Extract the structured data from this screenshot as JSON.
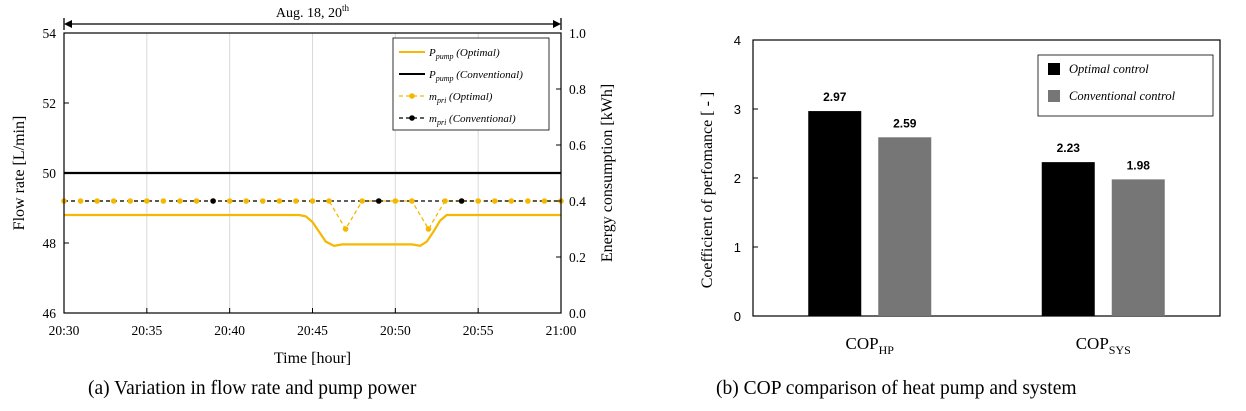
{
  "chart_data": [
    {
      "type": "line",
      "caption": "(a)  Variation  in  flow rate  and  pump  power",
      "date_label": "Aug. 18, 20",
      "date_label_sup": "th",
      "xlabel": "Time [hour]",
      "ylabel": "Flow rate [L/min]",
      "y2label": "Energy consumption [kWh]",
      "x_ticks": [
        "20:30",
        "20:35",
        "20:40",
        "20:45",
        "20:50",
        "20:55",
        "21:00"
      ],
      "x_range_min": [
        0,
        30
      ],
      "ylim": [
        46,
        54
      ],
      "y_ticks": [
        46,
        48,
        50,
        52,
        54
      ],
      "y2lim": [
        0.0,
        1.0
      ],
      "y2_ticks": [
        "0.0",
        "0.2",
        "0.4",
        "0.6",
        "0.8",
        "1.0"
      ],
      "grid": "vertical",
      "legend_position": "top-right",
      "series": [
        {
          "name": "P",
          "sub": "pump",
          "note": " (Optimal)",
          "color": "#f5b800",
          "style": "solid",
          "axis": "right",
          "x": [
            0,
            14.2,
            14.6,
            15.0,
            15.4,
            15.8,
            16.3,
            16.8,
            21.0,
            21.5,
            21.9,
            22.3,
            22.7,
            23.1,
            30
          ],
          "y": [
            0.35,
            0.35,
            0.345,
            0.325,
            0.29,
            0.255,
            0.24,
            0.245,
            0.245,
            0.24,
            0.255,
            0.29,
            0.33,
            0.35,
            0.35
          ]
        },
        {
          "name": "P",
          "sub": "pump",
          "note": " (Conventional)",
          "color": "#000000",
          "style": "solid",
          "axis": "right",
          "x": [
            0,
            30
          ],
          "y": [
            0.5,
            0.5
          ]
        },
        {
          "name": "m",
          "sub": "pri",
          "note": " (Optimal)",
          "color": "#f5b800",
          "style": "dashed",
          "markers": true,
          "axis": "left",
          "x": [
            0,
            1,
            2,
            3,
            4,
            5,
            6,
            7,
            8,
            9,
            10,
            11,
            12,
            13,
            14,
            15,
            16,
            17,
            18,
            19,
            20,
            21,
            22,
            23,
            24,
            25,
            26,
            27,
            28,
            29,
            30
          ],
          "y": [
            49.2,
            49.2,
            49.2,
            49.2,
            49.2,
            49.2,
            49.2,
            49.2,
            49.2,
            49.2,
            49.2,
            49.2,
            49.2,
            49.2,
            49.2,
            49.2,
            49.2,
            48.4,
            49.2,
            49.2,
            49.2,
            49.2,
            48.4,
            49.2,
            49.2,
            49.2,
            49.2,
            49.2,
            49.2,
            49.2,
            49.2
          ]
        },
        {
          "name": "m",
          "sub": "pri",
          "note": " (Conventional)",
          "color": "#000000",
          "style": "dashed",
          "markers": true,
          "axis": "left",
          "x": [
            0,
            1,
            2,
            3,
            4,
            5,
            6,
            7,
            8,
            9,
            10,
            11,
            12,
            13,
            14,
            15,
            16,
            17,
            18,
            19,
            20,
            21,
            22,
            23,
            24,
            25,
            26,
            27,
            28,
            29,
            30
          ],
          "y": [
            49.2,
            49.2,
            49.2,
            49.2,
            49.2,
            49.2,
            49.2,
            49.2,
            49.2,
            49.2,
            49.2,
            49.2,
            49.2,
            49.2,
            49.2,
            49.2,
            49.2,
            49.2,
            49.2,
            49.2,
            49.2,
            49.2,
            49.2,
            49.2,
            49.2,
            49.2,
            49.2,
            49.2,
            49.2,
            49.2,
            49.2
          ]
        }
      ]
    },
    {
      "type": "bar",
      "caption": "(b)  COP comparison  of  heat  pump  and  system",
      "categories": [
        {
          "main": "COP",
          "sub": "HP"
        },
        {
          "main": "COP",
          "sub": "SYS"
        }
      ],
      "ylabel": "Coefficient of perfomance [ - ]",
      "ylim": [
        0,
        4
      ],
      "y_ticks": [
        0,
        1,
        2,
        3,
        4
      ],
      "grid": "none",
      "legend_position": "top-right",
      "series": [
        {
          "name": "Optimal control",
          "color": "#000000",
          "values": [
            2.97,
            2.23
          ],
          "labels": [
            "2.97",
            "2.23"
          ]
        },
        {
          "name": "Conventional control",
          "color": "#767676",
          "values": [
            2.59,
            1.98
          ],
          "labels": [
            "2.59",
            "1.98"
          ]
        }
      ]
    }
  ]
}
